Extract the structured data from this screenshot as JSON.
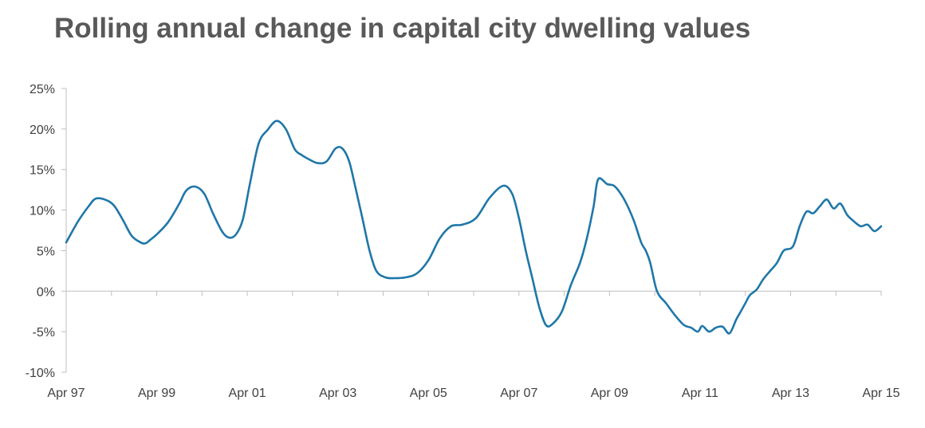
{
  "chart_data": {
    "type": "line",
    "title": "Rolling annual change in capital city dwelling values",
    "xlabel": "",
    "ylabel": "",
    "ylim": [
      -10,
      25
    ],
    "yticks": [
      25,
      20,
      15,
      10,
      5,
      0,
      -5,
      -10
    ],
    "ytick_labels": [
      "25%",
      "20%",
      "15%",
      "10%",
      "5%",
      "0%",
      "-5%",
      "-10%"
    ],
    "xtick_labels": [
      "Apr 97",
      "Apr 99",
      "Apr 01",
      "Apr 03",
      "Apr 05",
      "Apr 07",
      "Apr 09",
      "Apr 11",
      "Apr 13",
      "Apr 15"
    ],
    "xtick_years": [
      1997.25,
      1999.25,
      2001.25,
      2003.25,
      2005.25,
      2007.25,
      2009.25,
      2011.25,
      2013.25,
      2015.25
    ],
    "xlim": [
      1997.25,
      2015.25
    ],
    "grid": false,
    "line_color": "#1f77a8",
    "series": [
      {
        "values_x": [
          1997.25,
          1997.5,
          1997.75,
          1997.9,
          1998.1,
          1998.3,
          1998.5,
          1998.7,
          1998.9,
          1999.0,
          1999.1,
          1999.25,
          1999.5,
          1999.75,
          1999.9,
          2000.1,
          2000.3,
          2000.5,
          2000.7,
          2000.85,
          2001.0,
          2001.15,
          2001.3,
          2001.5,
          2001.7,
          2001.9,
          2002.1,
          2002.3,
          2002.45,
          2002.6,
          2002.8,
          2003.0,
          2003.2,
          2003.35,
          2003.5,
          2003.65,
          2003.8,
          2003.95,
          2004.1,
          2004.3,
          2004.5,
          2004.75,
          2005.0,
          2005.25,
          2005.5,
          2005.75,
          2006.0,
          2006.3,
          2006.6,
          2006.9,
          2007.1,
          2007.25,
          2007.4,
          2007.55,
          2007.7,
          2007.85,
          2008.0,
          2008.2,
          2008.4,
          2008.6,
          2008.75,
          2008.9,
          2009.0,
          2009.2,
          2009.35,
          2009.5,
          2009.65,
          2009.8,
          2009.95,
          2010.05,
          2010.15,
          2010.3,
          2010.5,
          2010.7,
          2010.9,
          2011.05,
          2011.2,
          2011.3,
          2011.45,
          2011.6,
          2011.75,
          2011.9,
          2012.05,
          2012.15,
          2012.25,
          2012.35,
          2012.5,
          2012.65,
          2012.8,
          2012.95,
          2013.1,
          2013.3,
          2013.45,
          2013.6,
          2013.75,
          2013.9,
          2014.05,
          2014.2,
          2014.35,
          2014.5,
          2014.65,
          2014.8,
          2014.95,
          2015.1,
          2015.25
        ],
        "values_y": [
          6.0,
          8.5,
          10.5,
          11.4,
          11.3,
          10.6,
          8.8,
          6.8,
          6.0,
          5.9,
          6.3,
          7.0,
          8.5,
          10.8,
          12.4,
          12.9,
          12.0,
          9.5,
          7.3,
          6.6,
          7.0,
          8.8,
          13.0,
          18.2,
          19.9,
          21.0,
          20.0,
          17.5,
          16.8,
          16.3,
          15.8,
          16.0,
          17.6,
          17.6,
          16.0,
          12.5,
          8.8,
          5.0,
          2.5,
          1.7,
          1.6,
          1.7,
          2.2,
          3.8,
          6.5,
          8.0,
          8.2,
          9.0,
          11.5,
          13.0,
          12.0,
          9.0,
          5.0,
          1.5,
          -2.0,
          -4.2,
          -4.0,
          -2.5,
          0.8,
          3.5,
          6.5,
          10.5,
          13.8,
          13.2,
          13.0,
          12.0,
          10.5,
          8.5,
          6.0,
          5.0,
          3.5,
          0.0,
          -1.5,
          -3.0,
          -4.2,
          -4.5,
          -5.0,
          -4.3,
          -5.0,
          -4.5,
          -4.4,
          -5.2,
          -3.5,
          -2.5,
          -1.5,
          -0.5,
          0.2,
          1.5,
          2.5,
          3.5,
          5.0,
          5.5,
          8.0,
          9.8,
          9.6,
          10.5,
          11.3,
          10.2,
          10.8,
          9.4,
          8.6,
          8.0,
          8.2,
          7.4,
          8.0
        ]
      }
    ]
  }
}
